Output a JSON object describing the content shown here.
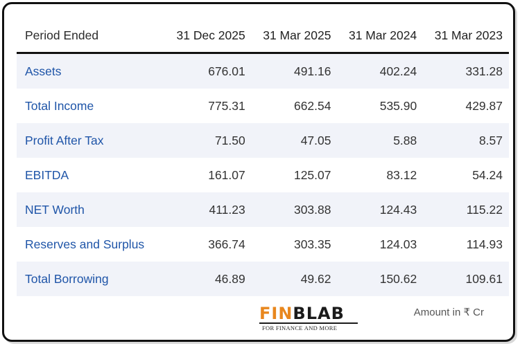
{
  "table": {
    "header": {
      "label": "Period Ended",
      "periods": [
        "31 Dec 2025",
        "31 Mar 2025",
        "31 Mar 2024",
        "31 Mar 2023"
      ]
    },
    "rows": [
      {
        "label": "Assets",
        "values": [
          "676.01",
          "491.16",
          "402.24",
          "331.28"
        ]
      },
      {
        "label": "Total Income",
        "values": [
          "775.31",
          "662.54",
          "535.90",
          "429.87"
        ]
      },
      {
        "label": "Profit After Tax",
        "values": [
          "71.50",
          "47.05",
          "5.88",
          "8.57"
        ]
      },
      {
        "label": "EBITDA",
        "values": [
          "161.07",
          "125.07",
          "83.12",
          "54.24"
        ]
      },
      {
        "label": "NET Worth",
        "values": [
          "411.23",
          "303.88",
          "124.43",
          "115.22"
        ]
      },
      {
        "label": "Reserves and Surplus",
        "values": [
          "366.74",
          "303.35",
          "124.03",
          "114.93"
        ]
      },
      {
        "label": "Total Borrowing",
        "values": [
          "46.89",
          "49.62",
          "150.62",
          "109.61"
        ]
      }
    ]
  },
  "footer": {
    "logo_fin": "FIN",
    "logo_blab": "BLAB",
    "logo_tagline": "FOR FINANCE AND MORE",
    "amount_note": "Amount in ₹ Cr"
  },
  "colors": {
    "label_blue": "#1f55a8",
    "logo_orange": "#e8871e",
    "row_shade": "#f1f3f9"
  }
}
